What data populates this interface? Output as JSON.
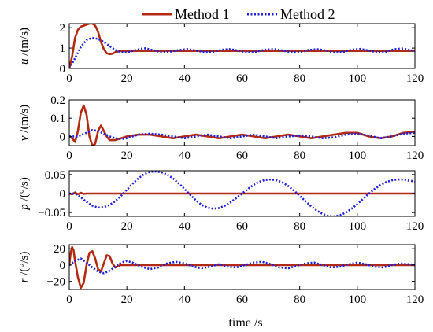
{
  "chart_data": {
    "type": "line",
    "legend": {
      "placement": "top",
      "entries": [
        {
          "name": "Method 1",
          "color": "#b22a12",
          "style": "solid"
        },
        {
          "name": "Method 2",
          "color": "#1f1fd6",
          "style": "dotted"
        }
      ]
    },
    "xlabel": "time /s",
    "xlim": [
      0,
      120
    ],
    "xticks": [
      0,
      20,
      40,
      60,
      80,
      100,
      120
    ],
    "panels": [
      {
        "ylabel_var": "u",
        "ylabel_unit": " /(m/s)",
        "ylim": [
          0,
          2.2
        ],
        "yticks": [
          0,
          1,
          2
        ],
        "ytick_labels": [
          "0",
          "1",
          "2"
        ],
        "series": [
          {
            "name": "Method 1",
            "x": [
              0,
              1,
              2,
              3,
              4,
              5,
              6,
              7,
              8,
              9,
              10,
              11,
              12,
              13,
              14,
              15,
              16,
              18,
              20,
              24,
              30,
              40,
              50,
              60,
              70,
              80,
              90,
              100,
              110,
              120
            ],
            "y": [
              0,
              0.6,
              1.5,
              1.9,
              2.05,
              2.1,
              2.15,
              2.2,
              2.2,
              2.1,
              1.8,
              1.3,
              0.95,
              0.75,
              0.7,
              0.72,
              0.8,
              0.86,
              0.85,
              0.86,
              0.86,
              0.86,
              0.86,
              0.86,
              0.86,
              0.86,
              0.86,
              0.86,
              0.86,
              0.86
            ]
          },
          {
            "name": "Method 2",
            "x": [
              0,
              2,
              4,
              6,
              8,
              10,
              12,
              14,
              16,
              18,
              20,
              23,
              26,
              29,
              32,
              35,
              38,
              41,
              44,
              47,
              50,
              53,
              56,
              59,
              62,
              65,
              68,
              71,
              74,
              77,
              80,
              83,
              86,
              89,
              92,
              95,
              98,
              101,
              104,
              107,
              110,
              113,
              116,
              119,
              120
            ],
            "y": [
              0,
              0.5,
              1.05,
              1.4,
              1.5,
              1.45,
              1.3,
              1.1,
              0.9,
              0.8,
              0.78,
              0.9,
              1.0,
              0.9,
              0.8,
              0.82,
              0.9,
              0.95,
              0.88,
              0.8,
              0.82,
              0.92,
              0.95,
              0.86,
              0.78,
              0.82,
              0.92,
              0.95,
              0.88,
              0.8,
              0.8,
              0.9,
              0.95,
              0.88,
              0.78,
              0.8,
              0.92,
              0.96,
              0.88,
              0.78,
              0.82,
              0.95,
              0.98,
              0.88,
              0.85
            ]
          }
        ]
      },
      {
        "ylabel_var": "v",
        "ylabel_unit": " /(m/s)",
        "ylim": [
          -0.05,
          0.2
        ],
        "yticks": [
          0,
          0.1,
          0.2
        ],
        "ytick_labels": [
          "0",
          "0.1",
          "0.2"
        ],
        "series": [
          {
            "name": "Method 1",
            "x": [
              0,
              1,
              2,
              3,
              4,
              5,
              6,
              7,
              8,
              9,
              10,
              11,
              12,
              13,
              14,
              16,
              18,
              20,
              24,
              28,
              32,
              36,
              40,
              44,
              48,
              52,
              56,
              60,
              64,
              68,
              72,
              76,
              80,
              84,
              88,
              92,
              96,
              100,
              104,
              108,
              112,
              116,
              120
            ],
            "y": [
              0,
              -0.01,
              -0.03,
              0.03,
              0.13,
              0.17,
              0.12,
              0.0,
              -0.05,
              -0.04,
              0.03,
              0.06,
              0.03,
              0.0,
              -0.02,
              -0.02,
              -0.01,
              0.0,
              0.01,
              0.01,
              0.0,
              -0.01,
              0.0,
              0.01,
              0.0,
              -0.01,
              0.0,
              0.01,
              0.0,
              -0.01,
              0.0,
              0.01,
              0.0,
              -0.01,
              0.0,
              0.01,
              0.02,
              0.02,
              0.0,
              -0.01,
              0.0,
              0.02,
              0.025
            ]
          },
          {
            "name": "Method 2",
            "x": [
              0,
              3,
              6,
              8,
              10,
              12,
              14,
              16,
              18,
              20,
              24,
              28,
              32,
              36,
              40,
              44,
              48,
              52,
              56,
              60,
              64,
              68,
              72,
              76,
              80,
              84,
              88,
              92,
              96,
              100,
              104,
              108,
              112,
              116,
              120
            ],
            "y": [
              0,
              0.0,
              0.02,
              0.035,
              0.03,
              0.015,
              0.0,
              -0.01,
              -0.015,
              -0.01,
              0.01,
              0.015,
              0.01,
              0.0,
              -0.01,
              0.0,
              0.01,
              0.0,
              -0.01,
              0.0,
              0.01,
              0.0,
              -0.01,
              0.0,
              0.005,
              0.0,
              -0.01,
              -0.005,
              0.01,
              0.015,
              0.005,
              -0.01,
              0.0,
              0.015,
              0.02
            ]
          }
        ]
      },
      {
        "ylabel_var": "p",
        "ylabel_unit": " /(°/s)",
        "ylim": [
          -0.06,
          0.06
        ],
        "yticks": [
          -0.05,
          0,
          0.05
        ],
        "ytick_labels": [
          "−0.05",
          "0",
          "0.05"
        ],
        "series": [
          {
            "name": "Method 1",
            "x": [
              0,
              1,
              2,
              3,
              4,
              5,
              6,
              8,
              120
            ],
            "y": [
              0,
              -0.002,
              0.003,
              -0.002,
              0.002,
              -0.001,
              0,
              0,
              0
            ]
          },
          {
            "name": "Method 2",
            "x": [
              0,
              2,
              4,
              6,
              8,
              10,
              12,
              14,
              16,
              18,
              20,
              22,
              24,
              26,
              28,
              30,
              32,
              34,
              36,
              38,
              40,
              42,
              44,
              46,
              48,
              50,
              52,
              54,
              56,
              58,
              60,
              62,
              64,
              66,
              68,
              70,
              72,
              74,
              76,
              78,
              80,
              82,
              84,
              86,
              88,
              90,
              92,
              94,
              96,
              98,
              100,
              102,
              104,
              106,
              108,
              110,
              112,
              114,
              116,
              118,
              120
            ],
            "y": [
              0,
              0.0,
              -0.01,
              -0.022,
              -0.032,
              -0.037,
              -0.036,
              -0.03,
              -0.02,
              -0.006,
              0.01,
              0.026,
              0.04,
              0.051,
              0.057,
              0.058,
              0.056,
              0.05,
              0.04,
              0.027,
              0.012,
              -0.003,
              -0.018,
              -0.03,
              -0.037,
              -0.04,
              -0.038,
              -0.032,
              -0.023,
              -0.012,
              0.0,
              0.012,
              0.023,
              0.031,
              0.036,
              0.037,
              0.035,
              0.029,
              0.02,
              0.008,
              -0.006,
              -0.02,
              -0.034,
              -0.045,
              -0.054,
              -0.059,
              -0.06,
              -0.057,
              -0.05,
              -0.04,
              -0.028,
              -0.014,
              0.0,
              0.012,
              0.022,
              0.03,
              0.035,
              0.037,
              0.037,
              0.034,
              0.032
            ]
          }
        ]
      },
      {
        "ylabel_var": "r",
        "ylabel_unit": " /(°/s)",
        "ylim": [
          -30,
          25
        ],
        "yticks": [
          -20,
          0,
          20
        ],
        "ytick_labels": [
          "−20",
          "0",
          "20"
        ],
        "series": [
          {
            "name": "Method 1",
            "x": [
              0,
              0.5,
              1,
              1.5,
              2,
              3,
              4,
              5,
              6,
              7,
              8,
              9,
              10,
              11,
              12,
              13,
              14,
              15,
              16,
              17,
              18,
              20,
              25,
              30,
              40,
              50,
              60,
              70,
              80,
              90,
              100,
              110,
              120
            ],
            "y": [
              0,
              15,
              22,
              18,
              5,
              -15,
              -28,
              -22,
              0,
              15,
              17,
              8,
              -5,
              -8,
              2,
              12,
              11,
              2,
              -3,
              -1,
              0,
              0,
              0,
              0,
              0,
              0,
              0,
              0,
              0,
              0,
              0,
              0,
              0
            ]
          },
          {
            "name": "Method 2",
            "x": [
              0,
              2,
              4,
              6,
              8,
              10,
              12,
              14,
              16,
              18,
              20,
              22,
              25,
              28,
              31,
              34,
              37,
              40,
              43,
              46,
              49,
              52,
              55,
              58,
              61,
              64,
              67,
              70,
              73,
              76,
              79,
              82,
              85,
              88,
              91,
              94,
              97,
              100,
              103,
              106,
              109,
              112,
              115,
              118,
              120
            ],
            "y": [
              0,
              5,
              8,
              3,
              -3,
              -8,
              -10,
              -7,
              -2,
              3,
              5,
              3,
              -2,
              -5,
              -3,
              2,
              4,
              2,
              -2,
              -4,
              -2,
              1,
              -2,
              -3,
              0,
              3,
              4,
              1,
              -3,
              -4,
              -1,
              2,
              3,
              0,
              -3,
              -2,
              1,
              3,
              1,
              -2,
              -3,
              0,
              2,
              1,
              0
            ]
          }
        ]
      }
    ],
    "grid": false
  }
}
